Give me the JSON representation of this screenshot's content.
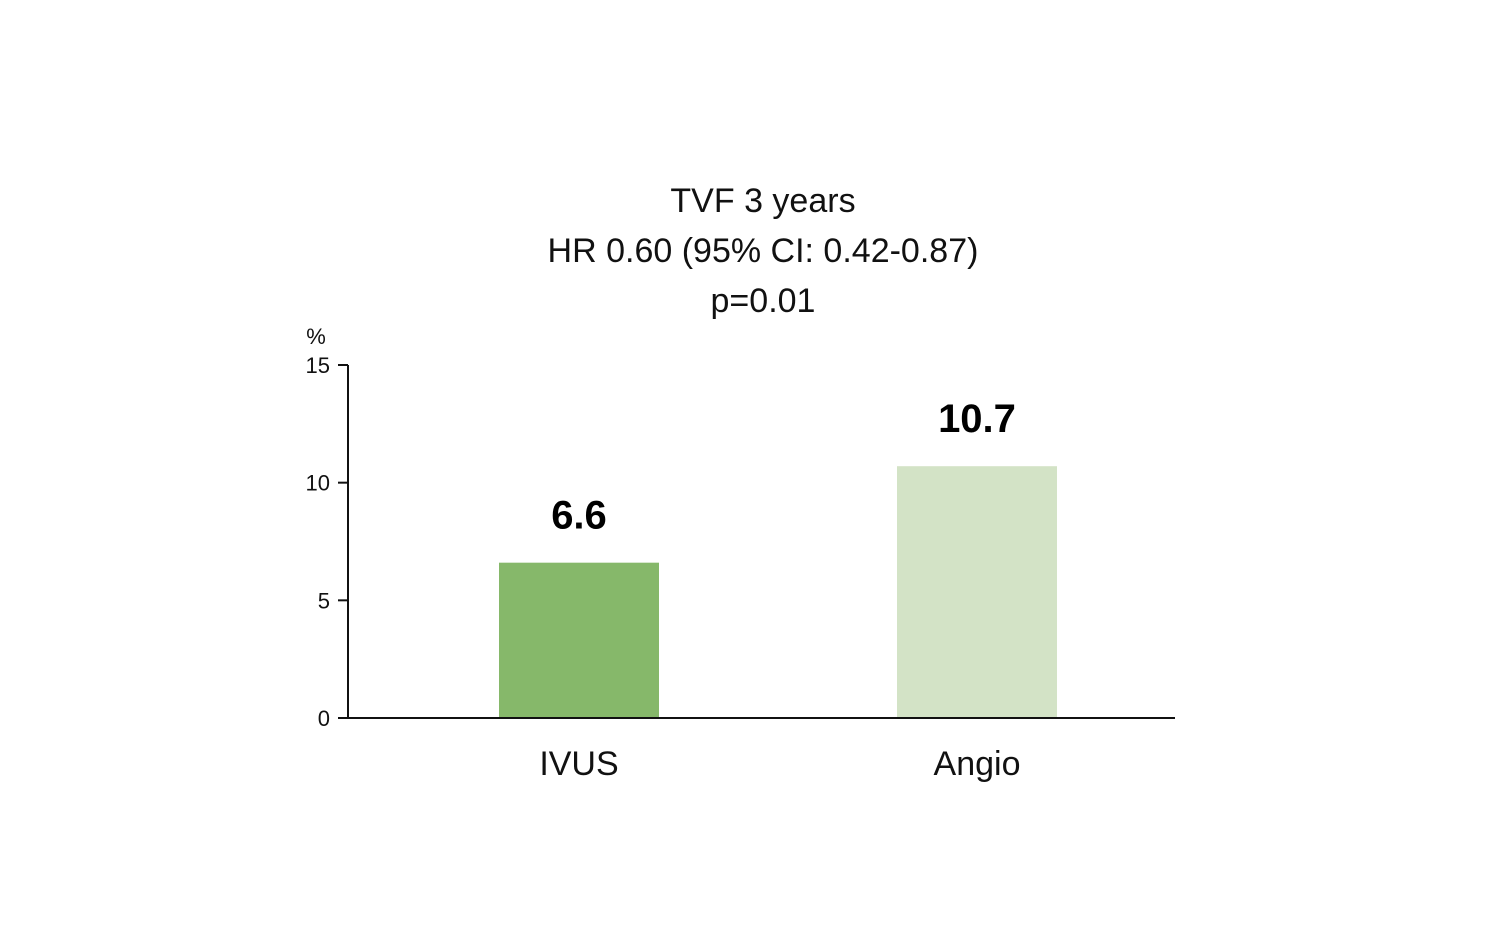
{
  "chart_data": {
    "type": "bar",
    "title_lines": [
      "TVF 3 years",
      "HR 0.60 (95% CI: 0.42-0.87)",
      "p=0.01"
    ],
    "categories": [
      "IVUS",
      "Angio"
    ],
    "values": [
      6.6,
      10.7
    ],
    "data_labels": [
      "6.6",
      "10.7"
    ],
    "bar_colors": [
      "#86b86a",
      "#d3e3c6"
    ],
    "y_unit": "%",
    "ylim": [
      0,
      15
    ],
    "yticks": [
      0,
      5,
      10,
      15
    ],
    "grid": false,
    "legend": "none"
  }
}
